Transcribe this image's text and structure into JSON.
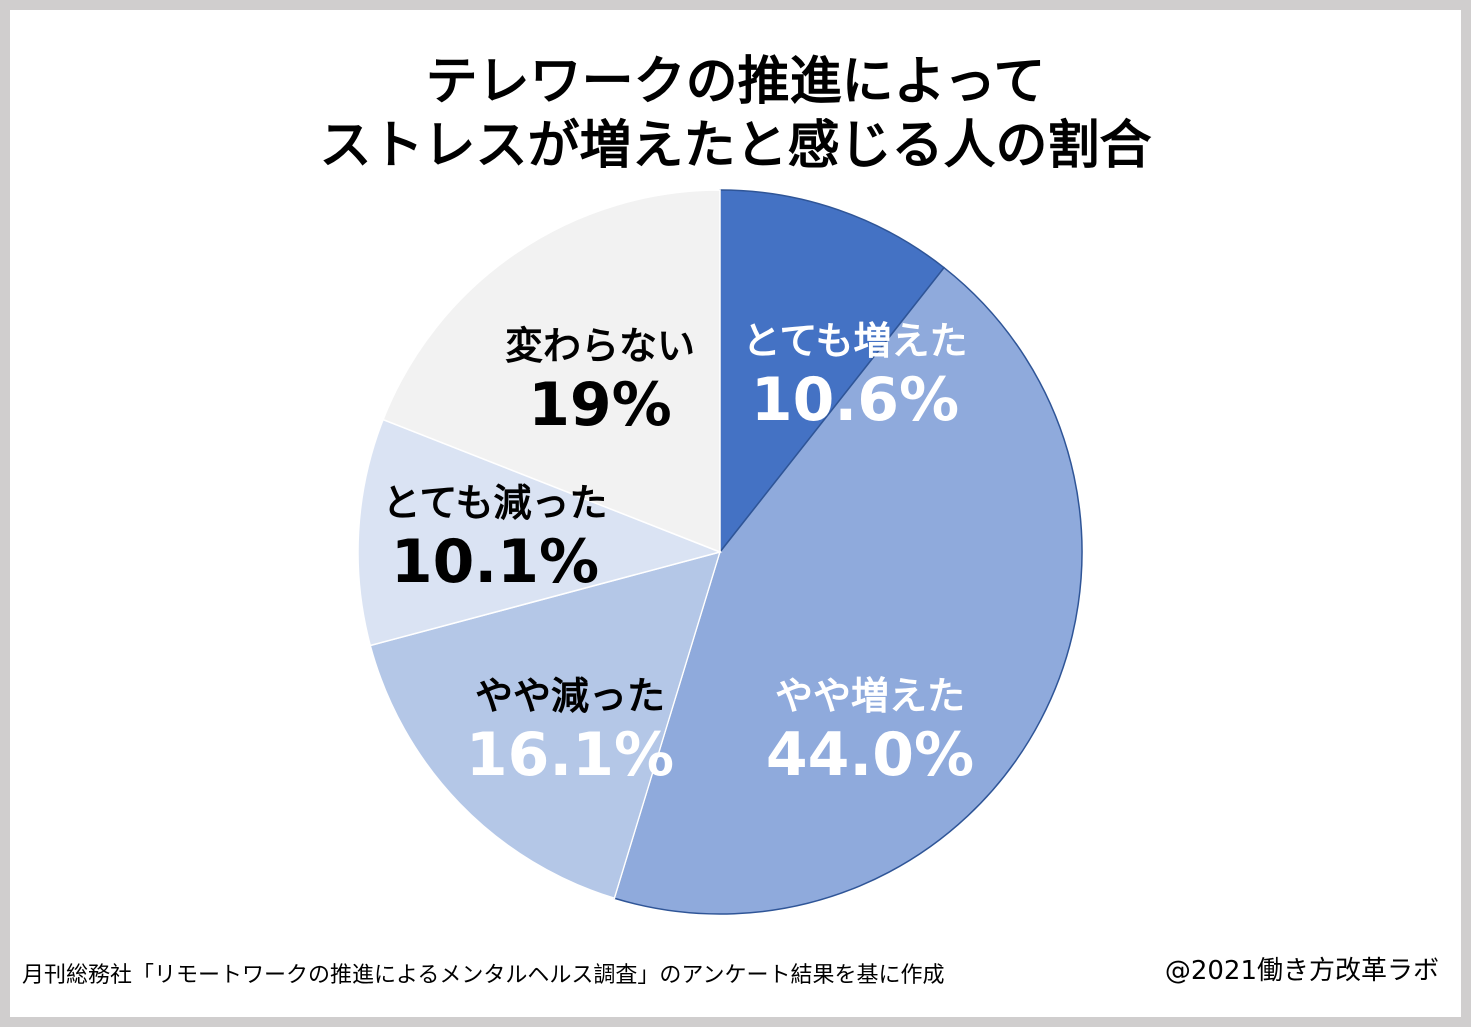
{
  "chart_data": {
    "type": "pie",
    "title_lines": [
      "テレワークの推進によって",
      "ストレスが増えたと感じる人の割合"
    ],
    "start": "top, clockwise",
    "slices": [
      {
        "label": "とても増えた",
        "value": 10.6,
        "display": "10.6%",
        "color": "#4472C4"
      },
      {
        "label": "やや増えた",
        "value": 44.0,
        "display": "44.0%",
        "color": "#8FAADC"
      },
      {
        "label": "やや減った",
        "value": 16.1,
        "display": "16.1%",
        "color": "#B4C7E7"
      },
      {
        "label": "とても減った",
        "value": 10.1,
        "display": "10.1%",
        "color": "#DAE3F3"
      },
      {
        "label": "変わらない",
        "value": 19,
        "display": "19%",
        "color": "#F2F2F2"
      }
    ]
  },
  "footer": {
    "source": "月刊総務社「リモートワークの推進によるメンタルヘルス調査」のアンケート結果を基に作成",
    "credit": "@2021働き方改革ラボ"
  }
}
